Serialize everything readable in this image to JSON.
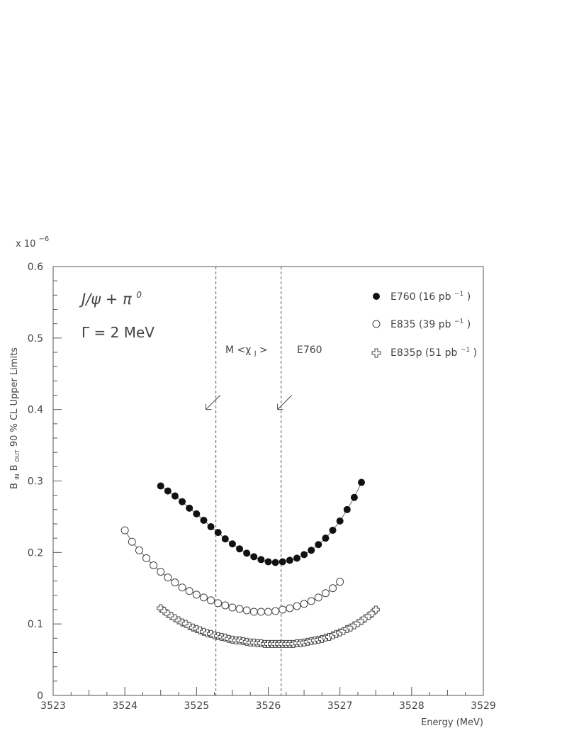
{
  "chart_data": {
    "type": "scatter",
    "exponent_label": "x 10",
    "exponent_power": "−6",
    "xlabel": "Energy (MeV)",
    "ylabel": {
      "b1": "B",
      "b1_sub": "IN",
      "b2": "B",
      "b2_sub": "OUT",
      "rest": " 90 % CL Upper Limits"
    },
    "xlim": [
      3523,
      3529
    ],
    "ylim": [
      0,
      0.6
    ],
    "x_ticks": [
      3523,
      3524,
      3525,
      3526,
      3527,
      3528,
      3529
    ],
    "x_tick_labels": [
      "3523",
      "3524",
      "3525",
      "3526",
      "3527",
      "3528",
      "3529"
    ],
    "y_ticks": [
      0,
      0.1,
      0.2,
      0.3,
      0.4,
      0.5,
      0.6
    ],
    "y_tick_labels": [
      "0",
      "0.1",
      "0.2",
      "0.3",
      "0.4",
      "0.5",
      "0.6"
    ],
    "annotations": {
      "process": "J/ψ + π",
      "process_sup": "0",
      "width": "Γ = 2 MeV",
      "mass_marker": "M <χ",
      "mass_marker_sub": "J",
      "mass_marker_end": ">",
      "e760_marker": "E760"
    },
    "vertical_lines": [
      3525.27,
      3526.18
    ],
    "arrows": [
      {
        "from": [
          3525.33,
          0.42
        ],
        "to": [
          3525.13,
          0.4
        ]
      },
      {
        "from": [
          3526.33,
          0.42
        ],
        "to": [
          3526.13,
          0.4
        ]
      }
    ],
    "series": [
      {
        "name": "E760 (16 pb",
        "name_sup": "−1",
        "name_end": ")",
        "marker": "filled-circle",
        "x": [
          3524.5,
          3524.6,
          3524.7,
          3524.8,
          3524.9,
          3525.0,
          3525.1,
          3525.2,
          3525.3,
          3525.4,
          3525.5,
          3525.6,
          3525.7,
          3525.8,
          3525.9,
          3526.0,
          3526.1,
          3526.2,
          3526.3,
          3526.4,
          3526.5,
          3526.6,
          3526.7,
          3526.8,
          3526.9,
          3527.0,
          3527.1,
          3527.2,
          3527.3
        ],
        "y": [
          0.293,
          0.286,
          0.279,
          0.271,
          0.262,
          0.254,
          0.245,
          0.236,
          0.228,
          0.219,
          0.212,
          0.205,
          0.199,
          0.194,
          0.19,
          0.187,
          0.186,
          0.187,
          0.189,
          0.192,
          0.197,
          0.203,
          0.211,
          0.22,
          0.231,
          0.244,
          0.26,
          0.277,
          0.298
        ]
      },
      {
        "name": "E835 (39 pb",
        "name_sup": "−1",
        "name_end": ")",
        "marker": "open-circle",
        "x": [
          3524.0,
          3524.1,
          3524.2,
          3524.3,
          3524.4,
          3524.5,
          3524.6,
          3524.7,
          3524.8,
          3524.9,
          3525.0,
          3525.1,
          3525.2,
          3525.3,
          3525.4,
          3525.5,
          3525.6,
          3525.7,
          3525.8,
          3525.9,
          3526.0,
          3526.1,
          3526.2,
          3526.3,
          3526.4,
          3526.5,
          3526.6,
          3526.7,
          3526.8,
          3526.9,
          3527.0
        ],
        "y": [
          0.231,
          0.215,
          0.203,
          0.192,
          0.182,
          0.173,
          0.165,
          0.158,
          0.151,
          0.146,
          0.141,
          0.137,
          0.133,
          0.129,
          0.126,
          0.123,
          0.121,
          0.119,
          0.117,
          0.117,
          0.117,
          0.118,
          0.12,
          0.122,
          0.125,
          0.128,
          0.132,
          0.137,
          0.143,
          0.15,
          0.159
        ]
      },
      {
        "name": "E835p (51 pb",
        "name_sup": "−1",
        "name_end": ")",
        "marker": "open-cross",
        "x": [
          3524.5,
          3524.55,
          3524.6,
          3524.65,
          3524.7,
          3524.75,
          3524.8,
          3524.85,
          3524.9,
          3524.95,
          3525.0,
          3525.05,
          3525.1,
          3525.15,
          3525.2,
          3525.25,
          3525.3,
          3525.35,
          3525.4,
          3525.45,
          3525.5,
          3525.55,
          3525.6,
          3525.65,
          3525.7,
          3525.75,
          3525.8,
          3525.85,
          3525.9,
          3525.95,
          3526.0,
          3526.05,
          3526.1,
          3526.15,
          3526.2,
          3526.25,
          3526.3,
          3526.35,
          3526.4,
          3526.45,
          3526.5,
          3526.55,
          3526.6,
          3526.65,
          3526.7,
          3526.75,
          3526.8,
          3526.85,
          3526.9,
          3526.95,
          3527.0,
          3527.05,
          3527.1,
          3527.15,
          3527.2,
          3527.25,
          3527.3,
          3527.35,
          3527.4,
          3527.45,
          3527.5
        ],
        "y": [
          0.122,
          0.118,
          0.114,
          0.111,
          0.108,
          0.105,
          0.102,
          0.1,
          0.097,
          0.095,
          0.093,
          0.091,
          0.089,
          0.087,
          0.086,
          0.084,
          0.083,
          0.082,
          0.081,
          0.079,
          0.078,
          0.077,
          0.077,
          0.076,
          0.075,
          0.074,
          0.074,
          0.073,
          0.073,
          0.072,
          0.072,
          0.072,
          0.072,
          0.072,
          0.072,
          0.072,
          0.072,
          0.072,
          0.073,
          0.073,
          0.074,
          0.075,
          0.076,
          0.077,
          0.078,
          0.079,
          0.081,
          0.082,
          0.084,
          0.086,
          0.088,
          0.09,
          0.093,
          0.095,
          0.098,
          0.101,
          0.104,
          0.108,
          0.111,
          0.115,
          0.12
        ]
      }
    ]
  }
}
